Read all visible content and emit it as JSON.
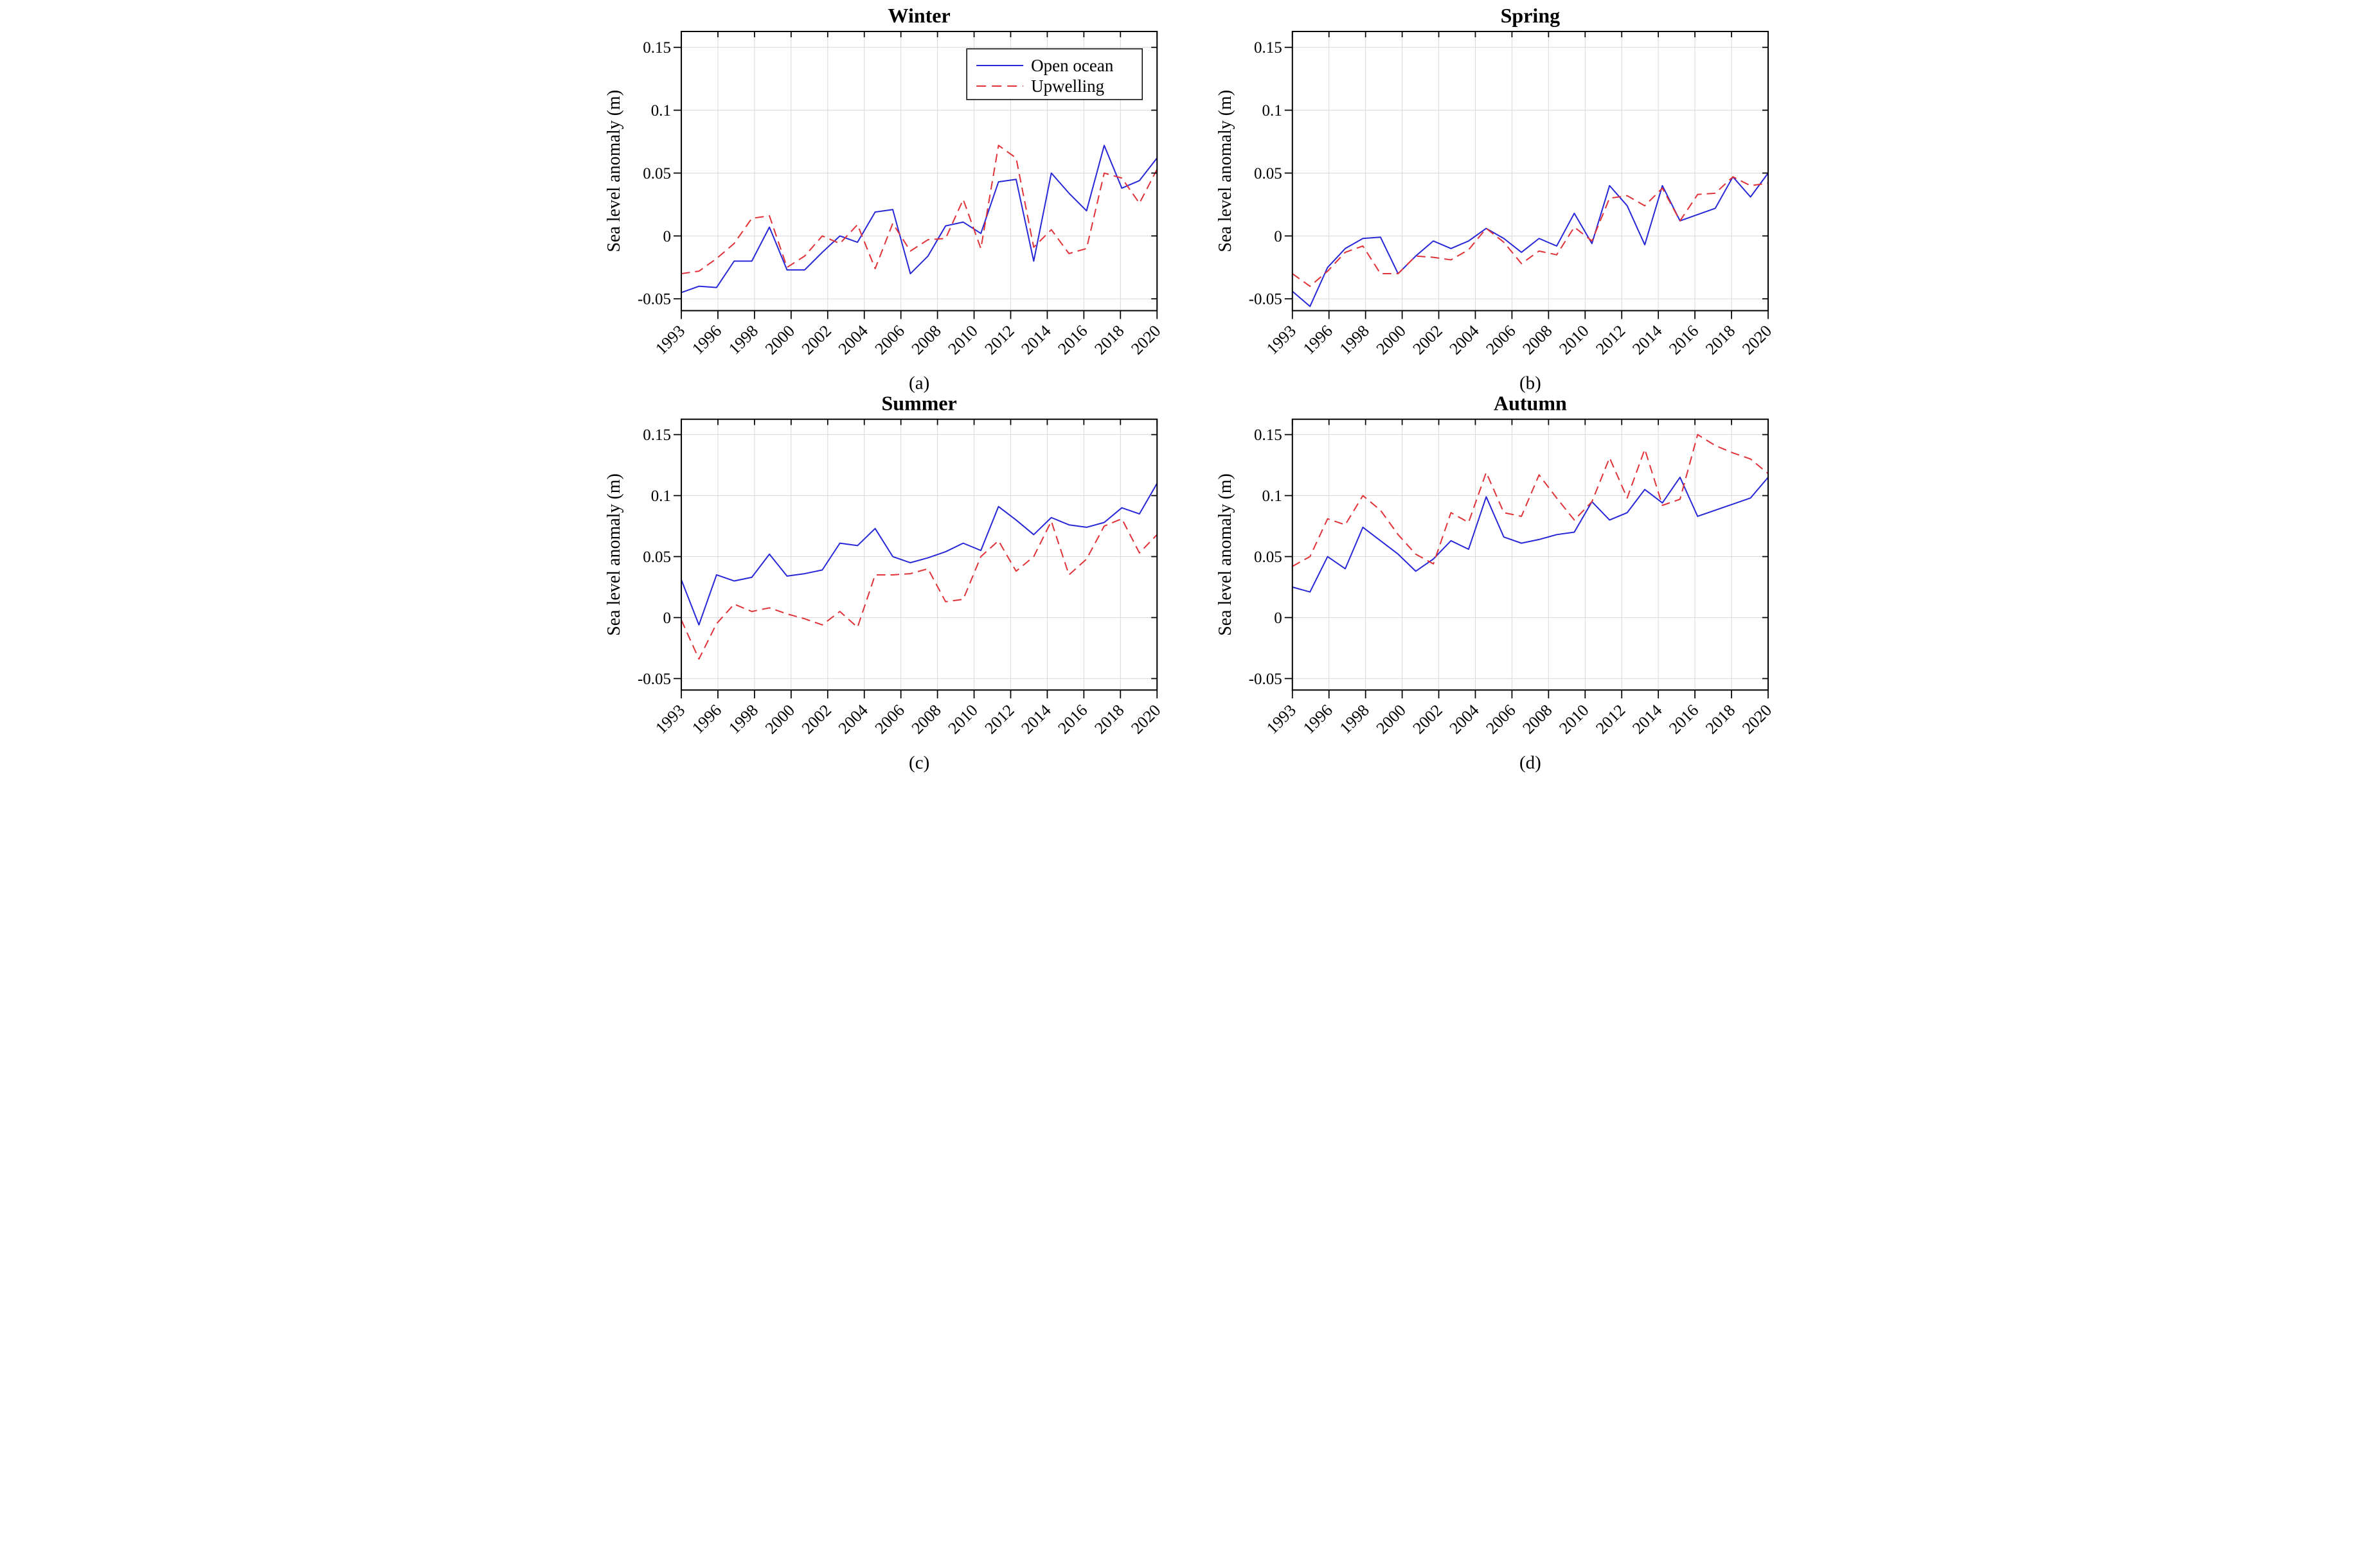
{
  "figure": {
    "background_color": "#ffffff",
    "grid_color": "#d9d9d9",
    "axis_color": "#000000",
    "open_ocean_color": "#2727d8",
    "upwelling_color": "#e03238",
    "ylabel": "Sea level anomaly (m)",
    "ytick_labels": [
      "0.15",
      "0.1",
      "0.05",
      "0",
      "-0.05"
    ],
    "ytick_values": [
      0.15,
      0.1,
      0.05,
      0,
      -0.05
    ],
    "xtick_labels": [
      "1993",
      "1996",
      "1998",
      "2000",
      "2002",
      "2004",
      "2006",
      "2008",
      "2010",
      "2012",
      "2014",
      "2016",
      "2018",
      "2020"
    ],
    "legend": {
      "entries": [
        {
          "label": "Open ocean",
          "line_style": "solid",
          "color": "#2727d8"
        },
        {
          "label": "Upwelling",
          "line_style": "dashed",
          "color": "#e03238"
        }
      ],
      "position": "top-right",
      "panel": "Winter"
    }
  },
  "chart_data": [
    {
      "type": "line",
      "title": "Winter",
      "panel_label": "(a)",
      "xlabel": "",
      "ylabel": "Sea level anomaly (m)",
      "ylim": [
        -0.0594,
        0.1626
      ],
      "xlim": [
        1993,
        2020
      ],
      "grid": true,
      "legend_visible": true,
      "legend_position": "top-right",
      "x": [
        1993,
        1994,
        1995,
        1996,
        1997,
        1998,
        1999,
        2000,
        2001,
        2002,
        2003,
        2004,
        2005,
        2006,
        2007,
        2008,
        2009,
        2010,
        2011,
        2012,
        2013,
        2014,
        2015,
        2016,
        2017,
        2018,
        2019,
        2020
      ],
      "series": [
        {
          "name": "Open ocean",
          "color": "#2727d8",
          "line_style": "solid",
          "values": [
            -0.045,
            -0.04,
            -0.041,
            -0.02,
            -0.02,
            0.007,
            -0.027,
            -0.027,
            -0.013,
            0.0,
            -0.005,
            0.019,
            0.021,
            -0.03,
            -0.016,
            0.008,
            0.011,
            0.002,
            0.043,
            0.045,
            -0.02,
            0.05,
            0.034,
            0.02,
            0.072,
            0.038,
            0.044,
            0.062
          ]
        },
        {
          "name": "Upwelling",
          "color": "#e03238",
          "line_style": "dashed",
          "values": [
            -0.03,
            -0.028,
            -0.018,
            -0.006,
            0.014,
            0.016,
            -0.025,
            -0.016,
            0.0,
            -0.006,
            0.009,
            -0.026,
            0.01,
            -0.012,
            -0.003,
            -0.002,
            0.029,
            -0.01,
            0.072,
            0.062,
            -0.009,
            0.005,
            -0.014,
            -0.01,
            0.05,
            0.046,
            0.026,
            0.053
          ]
        }
      ]
    },
    {
      "type": "line",
      "title": "Spring",
      "panel_label": "(b)",
      "xlabel": "",
      "ylabel": "Sea level anomaly (m)",
      "ylim": [
        -0.0594,
        0.1626
      ],
      "xlim": [
        1993,
        2020
      ],
      "grid": true,
      "legend_visible": false,
      "x": [
        1993,
        1994,
        1995,
        1996,
        1997,
        1998,
        1999,
        2000,
        2001,
        2002,
        2003,
        2004,
        2005,
        2006,
        2007,
        2008,
        2009,
        2010,
        2011,
        2012,
        2013,
        2014,
        2015,
        2016,
        2017,
        2018,
        2019,
        2020
      ],
      "series": [
        {
          "name": "Open ocean",
          "color": "#2727d8",
          "line_style": "solid",
          "values": [
            -0.044,
            -0.056,
            -0.025,
            -0.01,
            -0.002,
            -0.001,
            -0.03,
            -0.016,
            -0.004,
            -0.01,
            -0.004,
            0.006,
            -0.002,
            -0.013,
            -0.002,
            -0.008,
            0.018,
            -0.006,
            0.04,
            0.024,
            -0.007,
            0.04,
            0.012,
            0.017,
            0.022,
            0.047,
            0.031,
            0.05
          ]
        },
        {
          "name": "Upwelling",
          "color": "#e03238",
          "line_style": "dashed",
          "values": [
            -0.03,
            -0.04,
            -0.028,
            -0.013,
            -0.008,
            -0.03,
            -0.03,
            -0.016,
            -0.017,
            -0.019,
            -0.011,
            0.006,
            -0.005,
            -0.022,
            -0.012,
            -0.015,
            0.007,
            -0.004,
            0.03,
            0.032,
            0.024,
            0.038,
            0.012,
            0.033,
            0.034,
            0.047,
            0.04,
            0.042
          ]
        }
      ]
    },
    {
      "type": "line",
      "title": "Summer",
      "panel_label": "(c)",
      "xlabel": "",
      "ylabel": "Sea level anomaly (m)",
      "ylim": [
        -0.0594,
        0.1626
      ],
      "xlim": [
        1993,
        2020
      ],
      "grid": true,
      "legend_visible": false,
      "x": [
        1993,
        1994,
        1995,
        1996,
        1997,
        1998,
        1999,
        2000,
        2001,
        2002,
        2003,
        2004,
        2005,
        2006,
        2007,
        2008,
        2009,
        2010,
        2011,
        2012,
        2013,
        2014,
        2015,
        2016,
        2017,
        2018,
        2019,
        2020
      ],
      "series": [
        {
          "name": "Open ocean",
          "color": "#2727d8",
          "line_style": "solid",
          "values": [
            0.031,
            -0.006,
            0.035,
            0.03,
            0.033,
            0.052,
            0.034,
            0.036,
            0.039,
            0.061,
            0.059,
            0.073,
            0.05,
            0.045,
            0.049,
            0.054,
            0.061,
            0.055,
            0.091,
            0.08,
            0.068,
            0.082,
            0.076,
            0.074,
            0.078,
            0.09,
            0.085,
            0.11
          ]
        },
        {
          "name": "Upwelling",
          "color": "#e03238",
          "line_style": "dashed",
          "values": [
            -0.002,
            -0.034,
            -0.005,
            0.011,
            0.005,
            0.008,
            0.003,
            -0.001,
            -0.006,
            0.005,
            -0.008,
            0.035,
            0.035,
            0.036,
            0.04,
            0.013,
            0.015,
            0.05,
            0.063,
            0.038,
            0.05,
            0.079,
            0.035,
            0.048,
            0.075,
            0.081,
            0.053,
            0.068
          ]
        }
      ]
    },
    {
      "type": "line",
      "title": "Autumn",
      "panel_label": "(d)",
      "xlabel": "",
      "ylabel": "Sea level anomaly (m)",
      "ylim": [
        -0.0594,
        0.1626
      ],
      "xlim": [
        1993,
        2020
      ],
      "grid": true,
      "legend_visible": false,
      "x": [
        1993,
        1994,
        1995,
        1996,
        1997,
        1998,
        1999,
        2000,
        2001,
        2002,
        2003,
        2004,
        2005,
        2006,
        2007,
        2008,
        2009,
        2010,
        2011,
        2012,
        2013,
        2014,
        2015,
        2016,
        2017,
        2018,
        2019,
        2020
      ],
      "series": [
        {
          "name": "Open ocean",
          "color": "#2727d8",
          "line_style": "solid",
          "values": [
            0.025,
            0.021,
            0.05,
            0.04,
            0.074,
            0.063,
            0.052,
            0.038,
            0.048,
            0.063,
            0.056,
            0.099,
            0.066,
            0.061,
            0.064,
            0.068,
            0.07,
            0.095,
            0.08,
            0.086,
            0.105,
            0.094,
            0.115,
            0.083,
            0.088,
            0.093,
            0.098,
            0.115
          ]
        },
        {
          "name": "Upwelling",
          "color": "#e03238",
          "line_style": "dashed",
          "values": [
            0.042,
            0.05,
            0.081,
            0.076,
            0.1,
            0.088,
            0.068,
            0.052,
            0.044,
            0.086,
            0.078,
            0.119,
            0.086,
            0.083,
            0.117,
            0.098,
            0.08,
            0.095,
            0.131,
            0.098,
            0.138,
            0.092,
            0.097,
            0.15,
            0.141,
            0.135,
            0.13,
            0.118
          ]
        }
      ]
    }
  ]
}
